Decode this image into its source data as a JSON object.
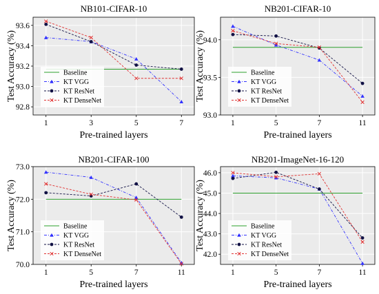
{
  "chart_data": [
    {
      "type": "line",
      "title": "NB101-CIFAR-10",
      "xlabel": "Pre-trained layers",
      "ylabel": "Test Accuracy (%)",
      "x": [
        1,
        3,
        5,
        7
      ],
      "xtick_labels": [
        "1",
        "3",
        "5",
        "7"
      ],
      "ylim": [
        92.72,
        93.68
      ],
      "yticks": [
        92.8,
        93.0,
        93.2,
        93.4,
        93.6
      ],
      "ytick_labels": [
        "92.8",
        "93.0",
        "93.2",
        "93.4",
        "93.6"
      ],
      "grid": true,
      "legend": "bottom-left",
      "baseline": 93.17,
      "series": [
        {
          "name": "Baseline",
          "style": "baseline",
          "color": "#2ca02c",
          "values": [
            93.17,
            93.17,
            93.17,
            93.17
          ]
        },
        {
          "name": "KT VGG",
          "style": "vgg",
          "color": "#3333ff",
          "values": [
            93.48,
            93.44,
            93.27,
            92.85
          ]
        },
        {
          "name": "KT ResNet",
          "style": "resnet",
          "color": "#111144",
          "values": [
            93.61,
            93.44,
            93.21,
            93.17
          ]
        },
        {
          "name": "KT DenseNet",
          "style": "densenet",
          "color": "#e03030",
          "values": [
            93.64,
            93.48,
            93.08,
            93.08
          ]
        }
      ]
    },
    {
      "type": "line",
      "title": "NB201-CIFAR-10",
      "xlabel": "Pre-trained layers",
      "ylabel": "Test Accuracy (%)",
      "x": [
        1,
        5,
        7,
        11
      ],
      "xtick_labels": [
        "1",
        "5",
        "7",
        "11"
      ],
      "ylim": [
        93.0,
        94.3
      ],
      "yticks": [
        93.0,
        93.5,
        94.0
      ],
      "ytick_labels": [
        "93.0",
        "93.5",
        "94.0"
      ],
      "grid": true,
      "legend": "bottom-left",
      "baseline": 93.9,
      "series": [
        {
          "name": "Baseline",
          "style": "baseline",
          "color": "#2ca02c",
          "values": [
            93.9,
            93.9,
            93.9,
            93.9
          ]
        },
        {
          "name": "KT VGG",
          "style": "vgg",
          "color": "#3333ff",
          "values": [
            94.18,
            93.93,
            93.73,
            93.25
          ]
        },
        {
          "name": "KT ResNet",
          "style": "resnet",
          "color": "#111144",
          "values": [
            94.07,
            94.05,
            93.89,
            93.42
          ]
        },
        {
          "name": "KT DenseNet",
          "style": "densenet",
          "color": "#e03030",
          "values": [
            94.12,
            93.95,
            93.9,
            93.17
          ]
        }
      ]
    },
    {
      "type": "line",
      "title": "NB201-CIFAR-100",
      "xlabel": "Pre-trained layers",
      "ylabel": "Test Accuracy (%)",
      "x": [
        1,
        5,
        7,
        11
      ],
      "xtick_labels": [
        "1",
        "5",
        "7",
        "11"
      ],
      "ylim": [
        70.0,
        73.0
      ],
      "yticks": [
        70.0,
        71.0,
        72.0,
        73.0
      ],
      "ytick_labels": [
        "70.0",
        "71.0",
        "72.0",
        "73.0"
      ],
      "grid": true,
      "legend": "bottom-left",
      "baseline": 72.0,
      "series": [
        {
          "name": "Baseline",
          "style": "baseline",
          "color": "#2ca02c",
          "values": [
            72.0,
            72.0,
            72.0,
            72.0
          ]
        },
        {
          "name": "KT VGG",
          "style": "vgg",
          "color": "#3333ff",
          "values": [
            72.83,
            72.67,
            72.05,
            70.05
          ]
        },
        {
          "name": "KT ResNet",
          "style": "resnet",
          "color": "#111144",
          "values": [
            72.2,
            72.1,
            72.47,
            71.45
          ]
        },
        {
          "name": "KT DenseNet",
          "style": "densenet",
          "color": "#e03030",
          "values": [
            72.47,
            72.15,
            71.98,
            70.02
          ]
        }
      ]
    },
    {
      "type": "line",
      "title": "NB201-ImageNet-16-120",
      "xlabel": "Pre-trained layers",
      "ylabel": "Test Accuracy (%)",
      "x": [
        1,
        5,
        7,
        11
      ],
      "xtick_labels": [
        "1",
        "5",
        "7",
        "11"
      ],
      "ylim": [
        41.5,
        46.3
      ],
      "yticks": [
        42.0,
        43.0,
        44.0,
        45.0,
        46.0
      ],
      "ytick_labels": [
        "42.0",
        "43.0",
        "44.0",
        "45.0",
        "46.0"
      ],
      "grid": true,
      "legend": "bottom-left",
      "baseline": 45.0,
      "series": [
        {
          "name": "Baseline",
          "style": "baseline",
          "color": "#2ca02c",
          "values": [
            45.0,
            45.0,
            45.0,
            45.0
          ]
        },
        {
          "name": "KT VGG",
          "style": "vgg",
          "color": "#3333ff",
          "values": [
            45.85,
            45.75,
            45.2,
            41.55
          ]
        },
        {
          "name": "KT ResNet",
          "style": "resnet",
          "color": "#111144",
          "values": [
            45.72,
            46.02,
            45.2,
            42.8
          ]
        },
        {
          "name": "KT DenseNet",
          "style": "densenet",
          "color": "#e03030",
          "values": [
            46.0,
            45.8,
            45.95,
            42.6
          ]
        }
      ]
    }
  ]
}
